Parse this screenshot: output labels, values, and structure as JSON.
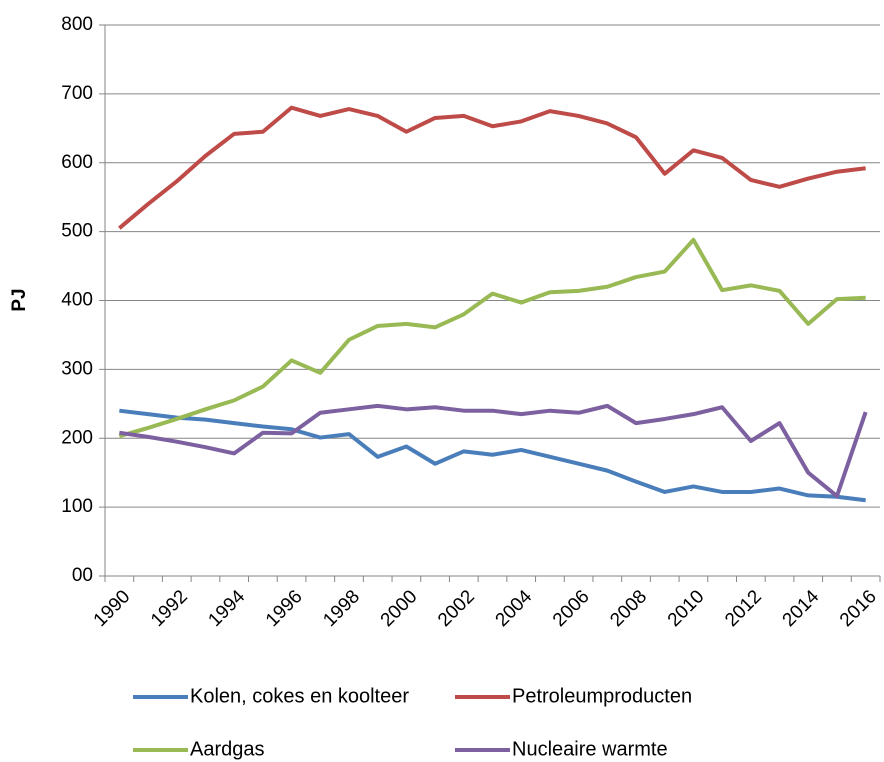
{
  "chart_data": {
    "type": "line",
    "y_label": "PJ",
    "categories": [
      "1990",
      null,
      "1992",
      null,
      "1994",
      null,
      "1996",
      null,
      "1998",
      null,
      "2000",
      null,
      "2002",
      null,
      "2004",
      null,
      "2006",
      null,
      "2008",
      null,
      "2010",
      null,
      "2012",
      null,
      "2014",
      null,
      "2016"
    ],
    "series": [
      {
        "name": "Kolen, cokes en koolteer",
        "color": "#4a7ebb",
        "values": [
          240,
          235,
          230,
          227,
          222,
          217,
          213,
          201,
          206,
          173,
          188,
          163,
          181,
          176,
          183,
          173,
          163,
          153,
          137,
          122,
          130,
          122,
          122,
          127,
          117,
          115,
          110
        ]
      },
      {
        "name": "Petroleumproducten",
        "color": "#be4b48",
        "values": [
          505,
          540,
          573,
          610,
          642,
          645,
          680,
          668,
          678,
          668,
          645,
          665,
          668,
          653,
          660,
          675,
          668,
          657,
          637,
          584,
          618,
          607,
          575,
          565,
          577,
          587,
          592
        ]
      },
      {
        "name": "Aardgas",
        "color": "#98b954",
        "values": [
          203,
          215,
          228,
          242,
          255,
          275,
          313,
          295,
          343,
          363,
          366,
          361,
          380,
          410,
          397,
          412,
          414,
          420,
          434,
          442,
          488,
          415,
          422,
          414,
          366,
          402,
          404
        ]
      },
      {
        "name": "Nucleaire warmte",
        "color": "#7d60a0",
        "values": [
          208,
          202,
          195,
          187,
          178,
          208,
          207,
          237,
          242,
          247,
          242,
          245,
          240,
          240,
          235,
          240,
          237,
          247,
          222,
          228,
          235,
          245,
          196,
          222,
          150,
          116,
          238
        ]
      }
    ],
    "ylim": [
      0,
      800
    ],
    "yticks": [
      {
        "value": 0,
        "label": "00"
      },
      100,
      200,
      300,
      400,
      500,
      600,
      700,
      800
    ],
    "grid": true
  }
}
